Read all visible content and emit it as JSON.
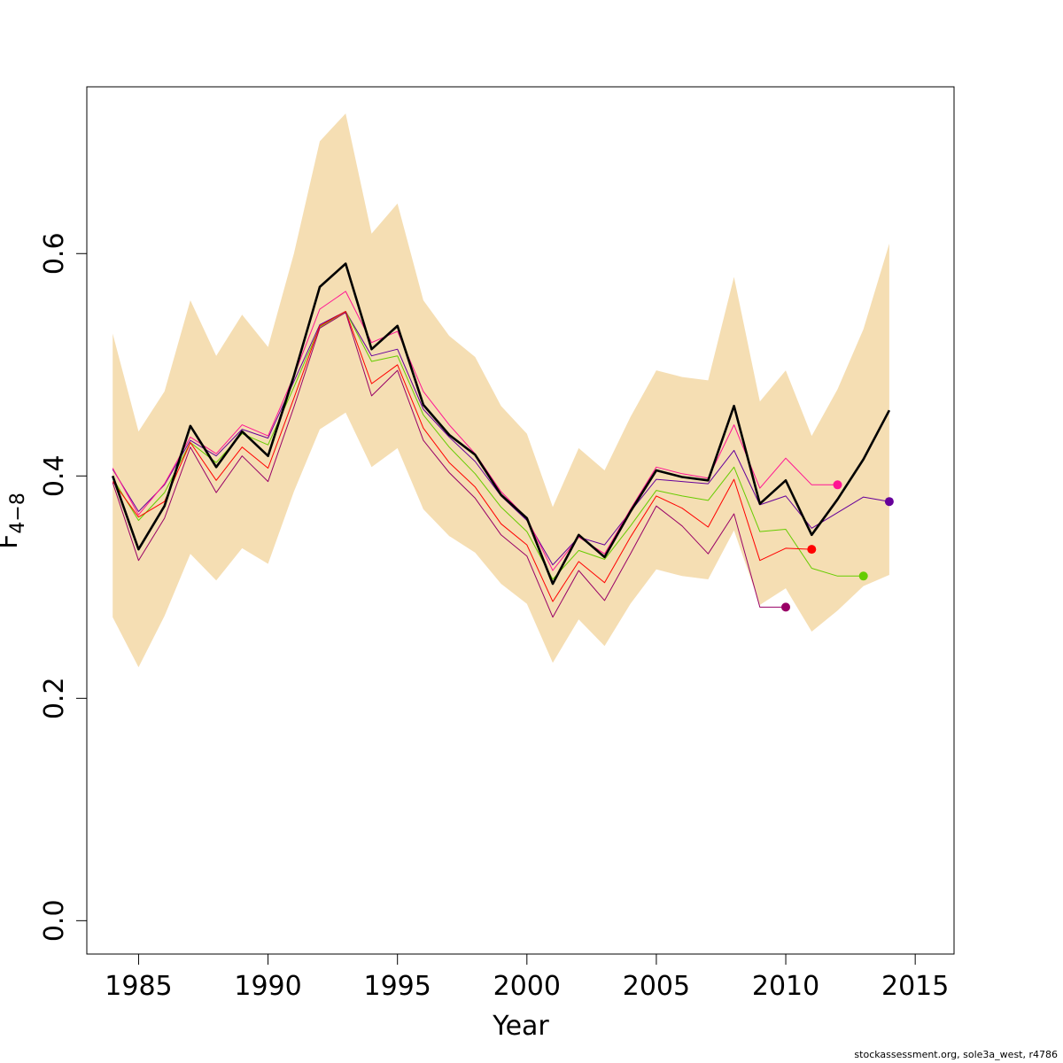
{
  "chart_data": {
    "type": "line",
    "xlabel": "Year",
    "ylabel": "F",
    "ylabel_subscript": "4−8",
    "xlim": [
      1983,
      2016.5
    ],
    "ylim": [
      -0.03,
      0.75
    ],
    "x_ticks": [
      "1985",
      "1990",
      "1995",
      "2000",
      "2005",
      "2010",
      "2015"
    ],
    "y_ticks": [
      "0.0",
      "0.2",
      "0.4",
      "0.6"
    ],
    "band": {
      "color": "#F5DEB3",
      "years": [
        1984,
        1985,
        1986,
        1987,
        1988,
        1989,
        1990,
        1991,
        1992,
        1993,
        1994,
        1995,
        1996,
        1997,
        1998,
        1999,
        2000,
        2001,
        2002,
        2003,
        2004,
        2005,
        2006,
        2007,
        2008,
        2009,
        2010,
        2011,
        2012,
        2013,
        2014
      ],
      "upper": [
        0.528,
        0.44,
        0.476,
        0.558,
        0.508,
        0.545,
        0.516,
        0.6,
        0.701,
        0.726,
        0.618,
        0.645,
        0.558,
        0.526,
        0.507,
        0.463,
        0.438,
        0.372,
        0.425,
        0.405,
        0.453,
        0.495,
        0.489,
        0.486,
        0.579,
        0.467,
        0.495,
        0.436,
        0.478,
        0.532,
        0.609
      ],
      "lower": [
        0.273,
        0.228,
        0.274,
        0.33,
        0.306,
        0.335,
        0.321,
        0.386,
        0.442,
        0.457,
        0.408,
        0.425,
        0.37,
        0.346,
        0.331,
        0.303,
        0.285,
        0.232,
        0.271,
        0.247,
        0.285,
        0.316,
        0.31,
        0.307,
        0.351,
        0.284,
        0.299,
        0.26,
        0.279,
        0.301,
        0.311
      ]
    },
    "series": [
      {
        "color": "#000000",
        "width": 2.6,
        "end_marker": false,
        "x": [
          1984,
          1985,
          1986,
          1987,
          1988,
          1989,
          1990,
          1991,
          1992,
          1993,
          1994,
          1995,
          1996,
          1997,
          1998,
          1999,
          2000,
          2001,
          2002,
          2003,
          2004,
          2005,
          2006,
          2007,
          2008,
          2009,
          2010,
          2011,
          2012,
          2013,
          2014
        ],
        "y": [
          0.4,
          0.334,
          0.373,
          0.445,
          0.408,
          0.44,
          0.418,
          0.49,
          0.57,
          0.591,
          0.514,
          0.535,
          0.464,
          0.437,
          0.419,
          0.383,
          0.362,
          0.303,
          0.347,
          0.327,
          0.368,
          0.405,
          0.399,
          0.396,
          0.463,
          0.375,
          0.396,
          0.347,
          0.379,
          0.415,
          0.459
        ]
      },
      {
        "color": "#66009A",
        "width": 1,
        "end_marker": true,
        "x": [
          1984,
          1985,
          1986,
          1987,
          1988,
          1989,
          1990,
          1991,
          1992,
          1993,
          1994,
          1995,
          1996,
          1997,
          1998,
          1999,
          2000,
          2001,
          2002,
          2003,
          2004,
          2005,
          2006,
          2007,
          2008,
          2009,
          2010,
          2011,
          2012,
          2013,
          2014
        ],
        "y": [
          0.406,
          0.368,
          0.392,
          0.432,
          0.418,
          0.442,
          0.434,
          0.485,
          0.536,
          0.548,
          0.508,
          0.514,
          0.46,
          0.435,
          0.413,
          0.382,
          0.36,
          0.32,
          0.345,
          0.338,
          0.368,
          0.397,
          0.395,
          0.393,
          0.423,
          0.374,
          0.382,
          0.353,
          0.367,
          0.381,
          0.377
        ]
      },
      {
        "color": "#FF1493",
        "width": 1,
        "end_marker": true,
        "x": [
          1984,
          1985,
          1986,
          1987,
          1988,
          1989,
          1990,
          1991,
          1992,
          1993,
          1994,
          1995,
          1996,
          1997,
          1998,
          1999,
          2000,
          2001,
          2002,
          2003,
          2004,
          2005,
          2006,
          2007,
          2008,
          2009,
          2010,
          2011,
          2012
        ],
        "y": [
          0.407,
          0.365,
          0.393,
          0.435,
          0.42,
          0.446,
          0.436,
          0.49,
          0.55,
          0.566,
          0.52,
          0.53,
          0.476,
          0.446,
          0.42,
          0.386,
          0.362,
          0.315,
          0.345,
          0.33,
          0.37,
          0.408,
          0.402,
          0.398,
          0.446,
          0.389,
          0.416,
          0.392,
          0.392
        ]
      },
      {
        "color": "#66CC00",
        "width": 1,
        "end_marker": true,
        "x": [
          1984,
          1985,
          1986,
          1987,
          1988,
          1989,
          1990,
          1991,
          1992,
          1993,
          1994,
          1995,
          1996,
          1997,
          1998,
          1999,
          2000,
          2001,
          2002,
          2003,
          2004,
          2005,
          2006,
          2007,
          2008,
          2009,
          2010,
          2011,
          2012,
          2013
        ],
        "y": [
          0.398,
          0.36,
          0.385,
          0.43,
          0.412,
          0.438,
          0.428,
          0.48,
          0.534,
          0.548,
          0.503,
          0.508,
          0.455,
          0.426,
          0.402,
          0.372,
          0.35,
          0.307,
          0.333,
          0.325,
          0.355,
          0.387,
          0.382,
          0.378,
          0.408,
          0.35,
          0.352,
          0.317,
          0.31,
          0.31
        ]
      },
      {
        "color": "#FF0000",
        "width": 1,
        "end_marker": true,
        "x": [
          1984,
          1985,
          1986,
          1987,
          1988,
          1989,
          1990,
          1991,
          1992,
          1993,
          1994,
          1995,
          1996,
          1997,
          1998,
          1999,
          2000,
          2001,
          2002,
          2003,
          2004,
          2005,
          2006,
          2007,
          2008,
          2009,
          2010,
          2011
        ],
        "y": [
          0.395,
          0.363,
          0.377,
          0.43,
          0.396,
          0.426,
          0.407,
          0.47,
          0.535,
          0.548,
          0.483,
          0.5,
          0.443,
          0.412,
          0.39,
          0.357,
          0.338,
          0.287,
          0.323,
          0.304,
          0.345,
          0.382,
          0.371,
          0.354,
          0.397,
          0.324,
          0.335,
          0.334
        ]
      },
      {
        "color": "#990066",
        "width": 1,
        "end_marker": true,
        "x": [
          1984,
          1985,
          1986,
          1987,
          1988,
          1989,
          1990,
          1991,
          1992,
          1993,
          1994,
          1995,
          1996,
          1997,
          1998,
          1999,
          2000,
          2001,
          2002,
          2003,
          2004,
          2005,
          2006,
          2007,
          2008,
          2009,
          2010
        ],
        "y": [
          0.394,
          0.324,
          0.362,
          0.426,
          0.385,
          0.418,
          0.395,
          0.462,
          0.533,
          0.547,
          0.472,
          0.495,
          0.432,
          0.403,
          0.38,
          0.347,
          0.328,
          0.273,
          0.315,
          0.288,
          0.33,
          0.373,
          0.355,
          0.33,
          0.366,
          0.282,
          0.282
        ]
      }
    ],
    "grid": false,
    "legend": "none"
  },
  "footer": {
    "text": "stockassessment.org, sole3a_west, r4786"
  }
}
